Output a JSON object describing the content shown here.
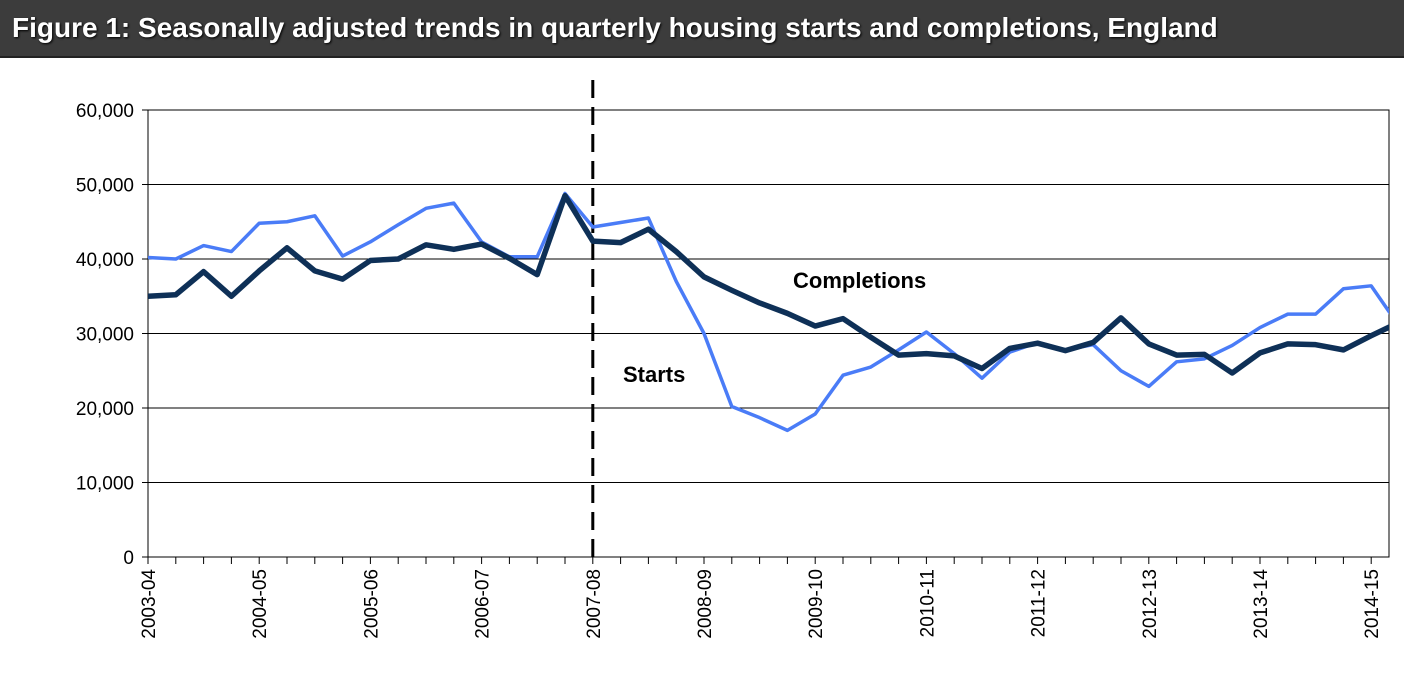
{
  "chart_data": {
    "type": "line",
    "title": "Figure 1: Seasonally adjusted trends in quarterly housing starts and completions, England",
    "categories": [
      "2003-04",
      null,
      null,
      null,
      "2004-05",
      null,
      null,
      null,
      "2005-06",
      null,
      null,
      null,
      "2006-07",
      null,
      null,
      null,
      "2007-08",
      null,
      null,
      null,
      "2008-09",
      null,
      null,
      null,
      "2009-10",
      null,
      null,
      null,
      "2010-11",
      null,
      null,
      null,
      "2011-12",
      null,
      null,
      null,
      "2012-13",
      null,
      null,
      null,
      "2013-14",
      null,
      null,
      null,
      "2014-15",
      null
    ],
    "series": [
      {
        "name": "Starts",
        "color": "#4a7cf7",
        "width": 3.5,
        "values": [
          40200,
          40000,
          41800,
          41000,
          44800,
          45000,
          45800,
          40400,
          42300,
          44600,
          46800,
          47500,
          42300,
          40300,
          40300,
          48800,
          44300,
          44900,
          45500,
          37000,
          30000,
          20200,
          18700,
          17000,
          19200,
          24400,
          25500,
          27800,
          30200,
          27300,
          24000,
          27500,
          28800,
          27800,
          28500,
          25000,
          22900,
          26200,
          26600,
          28400,
          30800,
          32600,
          32600,
          36000,
          36400,
          31000
        ]
      },
      {
        "name": "Completions",
        "color": "#0e3057",
        "width": 5.5,
        "values": [
          35000,
          35200,
          38300,
          35000,
          38400,
          41500,
          38400,
          37300,
          39800,
          40000,
          41900,
          41300,
          42000,
          40100,
          37900,
          48500,
          42400,
          42200,
          44000,
          41000,
          37600,
          35800,
          34100,
          32700,
          31000,
          32000,
          29500,
          27100,
          27300,
          27000,
          25300,
          28000,
          28700,
          27700,
          28800,
          32100,
          28600,
          27100,
          27200,
          24700,
          27400,
          28600,
          28500,
          27800,
          29700,
          31500
        ]
      }
    ],
    "ylim": [
      0,
      60000
    ],
    "yticks": [
      {
        "value": 0,
        "label": "0"
      },
      {
        "value": 10000,
        "label": "10,000"
      },
      {
        "value": 20000,
        "label": "20,000"
      },
      {
        "value": 30000,
        "label": "30,000"
      },
      {
        "value": 40000,
        "label": "40,000"
      },
      {
        "value": 50000,
        "label": "50,000"
      },
      {
        "value": 60000,
        "label": "60,000"
      }
    ],
    "grid": true,
    "vline": "2007-08"
  }
}
